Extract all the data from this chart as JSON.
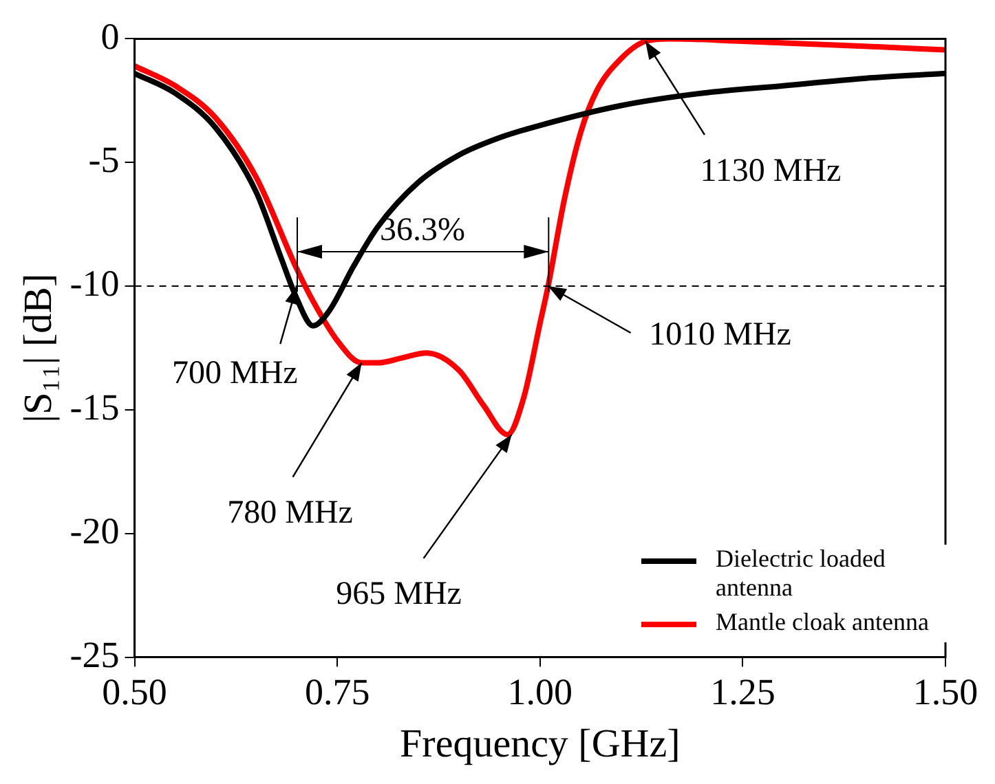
{
  "chart_data": {
    "type": "line",
    "xlabel": "Frequency [GHz]",
    "ylabel": "|S₁₁| [dB]",
    "xlim": [
      0.5,
      1.5
    ],
    "xticks": [
      {
        "value": 0.5,
        "label": "0.50"
      },
      {
        "value": 0.75,
        "label": "0.75"
      },
      {
        "value": 1.0,
        "label": "1.00"
      },
      {
        "value": 1.25,
        "label": "1.25"
      },
      {
        "value": 1.5,
        "label": "1.50"
      }
    ],
    "ylim": [
      -25,
      0
    ],
    "yticks": [
      -25,
      -20,
      -15,
      -10,
      -5,
      0
    ],
    "grid": false,
    "legend": "bottom right",
    "marker": "none",
    "line_style": "solid",
    "series": [
      {
        "name": "Dielectric loaded antenna",
        "color": "#000000",
        "x": [
          0.5,
          0.55,
          0.6,
          0.65,
          0.68,
          0.7,
          0.72,
          0.74,
          0.77,
          0.8,
          0.85,
          0.9,
          0.95,
          1.0,
          1.1,
          1.2,
          1.3,
          1.4,
          1.5
        ],
        "values": [
          -1.4,
          -2.2,
          -3.6,
          -6.2,
          -8.8,
          -10.5,
          -11.6,
          -11.0,
          -9.2,
          -7.6,
          -5.8,
          -4.7,
          -4.0,
          -3.5,
          -2.7,
          -2.2,
          -1.9,
          -1.6,
          -1.4
        ]
      },
      {
        "name": "Mantle cloak antenna",
        "color": "#ff0000",
        "x": [
          0.5,
          0.55,
          0.6,
          0.65,
          0.7,
          0.72,
          0.75,
          0.78,
          0.8,
          0.83,
          0.86,
          0.9,
          0.93,
          0.96,
          0.98,
          1.0,
          1.01,
          1.03,
          1.05,
          1.07,
          1.1,
          1.13,
          1.16,
          1.25,
          1.4,
          1.5
        ],
        "values": [
          -1.1,
          -1.9,
          -3.2,
          -5.6,
          -9.3,
          -10.6,
          -12.2,
          -13.1,
          -13.1,
          -12.9,
          -12.7,
          -13.4,
          -14.8,
          -16.0,
          -14.5,
          -11.5,
          -10.0,
          -6.5,
          -3.8,
          -2.1,
          -0.8,
          -0.1,
          0.0,
          -0.1,
          -0.3,
          -0.45
        ]
      }
    ],
    "ref_lines": [
      {
        "axis": "y",
        "value": -10,
        "color": "#000000",
        "line_style": "dashed"
      }
    ],
    "annotations": [
      "36.3%",
      {
        "text": "700 MHz",
        "x": 0.7,
        "y": -10
      },
      {
        "text": "1010 MHz",
        "x": 1.01,
        "y": -10
      },
      {
        "text": "780 MHz",
        "x": 0.78,
        "y": -13.1
      },
      {
        "text": "965 MHz",
        "x": 0.965,
        "y": -16
      },
      {
        "text": "1130 MHz",
        "x": 1.13,
        "y": -0.1
      }
    ]
  }
}
